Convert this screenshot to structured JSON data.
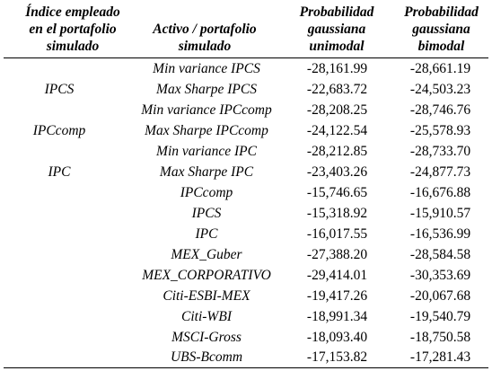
{
  "headers": {
    "col1": [
      "Índice empleado",
      "en el portafolio",
      "simulado"
    ],
    "col2": [
      "Activo / portafolio",
      "simulado"
    ],
    "col3": [
      "Probabilidad",
      "gaussiana",
      "unimodal"
    ],
    "col4": [
      "Probabilidad",
      "gaussiana",
      "bimodal"
    ]
  },
  "groups": [
    "IPCS",
    "IPCcomp",
    "IPC"
  ],
  "rows": [
    {
      "activo": "Min variance IPCS",
      "unimodal": "-28,161.99",
      "bimodal": "-28,661.19"
    },
    {
      "activo": "Max Sharpe IPCS",
      "unimodal": "-22,683.72",
      "bimodal": "-24,503.23"
    },
    {
      "activo": "Min variance IPCcomp",
      "unimodal": "-28,208.25",
      "bimodal": "-28,746.76"
    },
    {
      "activo": "Max Sharpe IPCcomp",
      "unimodal": "-24,122.54",
      "bimodal": "-25,578.93"
    },
    {
      "activo": "Min variance IPC",
      "unimodal": "-28,212.85",
      "bimodal": "-28,733.70"
    },
    {
      "activo": "Max Sharpe IPC",
      "unimodal": "-23,403.26",
      "bimodal": "-24,877.73"
    },
    {
      "activo": "IPCcomp",
      "unimodal": "-15,746.65",
      "bimodal": "-16,676.88"
    },
    {
      "activo": "IPCS",
      "unimodal": "-15,318.92",
      "bimodal": "-15,910.57"
    },
    {
      "activo": "IPC",
      "unimodal": "-16,017.55",
      "bimodal": "-16,536.99"
    },
    {
      "activo": "MEX_Guber",
      "unimodal": "-27,388.20",
      "bimodal": "-28,584.58"
    },
    {
      "activo": "MEX_CORPORATIVO",
      "unimodal": "-29,414.01",
      "bimodal": "-30,353.69"
    },
    {
      "activo": "Citi-ESBI-MEX",
      "unimodal": "-19,417.26",
      "bimodal": "-20,067.68"
    },
    {
      "activo": "Citi-WBI",
      "unimodal": "-18,991.34",
      "bimodal": "-19,540.79"
    },
    {
      "activo": "MSCI-Gross",
      "unimodal": "-18,093.40",
      "bimodal": "-18,750.58"
    },
    {
      "activo": "UBS-Bcomm",
      "unimodal": "-17,153.82",
      "bimodal": "-17,281.43"
    }
  ]
}
